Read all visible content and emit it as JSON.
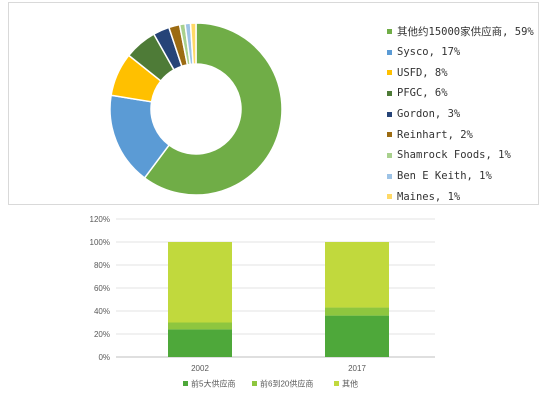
{
  "chart_data": [
    {
      "type": "pie",
      "donut": true,
      "title": "",
      "slices": [
        {
          "label": "其他约15000家供应商, 59%",
          "value": 59,
          "color": "#70ad47"
        },
        {
          "label": "Sysco, 17%",
          "value": 17,
          "color": "#5b9bd5"
        },
        {
          "label": "USFD, 8%",
          "value": 8,
          "color": "#ffc000"
        },
        {
          "label": "PFGC, 6%",
          "value": 6,
          "color": "#4e7b37"
        },
        {
          "label": "Gordon, 3%",
          "value": 3,
          "color": "#264478"
        },
        {
          "label": "Reinhart, 2%",
          "value": 2,
          "color": "#9c6b12"
        },
        {
          "label": "Shamrock Foods, 1%",
          "value": 1,
          "color": "#a9d18e"
        },
        {
          "label": "Ben E Keith, 1%",
          "value": 1,
          "color": "#9dc3e6"
        },
        {
          "label": "Maines, 1%",
          "value": 1,
          "color": "#ffd966"
        }
      ],
      "legend_position": "right"
    },
    {
      "type": "bar",
      "stacked": true,
      "title": "",
      "categories": [
        "2002",
        "2017"
      ],
      "series": [
        {
          "name": "前5大供应商",
          "values": [
            24,
            36
          ],
          "color": "#4ea83a"
        },
        {
          "name": "前6到20供应商",
          "values": [
            6,
            7
          ],
          "color": "#8ec63f"
        },
        {
          "name": "其他",
          "values": [
            70,
            57
          ],
          "color": "#c1d93d"
        }
      ],
      "y_ticks": [
        "0%",
        "20%",
        "40%",
        "60%",
        "80%",
        "100%",
        "120%"
      ],
      "ylim": [
        0,
        120
      ],
      "grid": true,
      "legend_position": "bottom"
    }
  ]
}
